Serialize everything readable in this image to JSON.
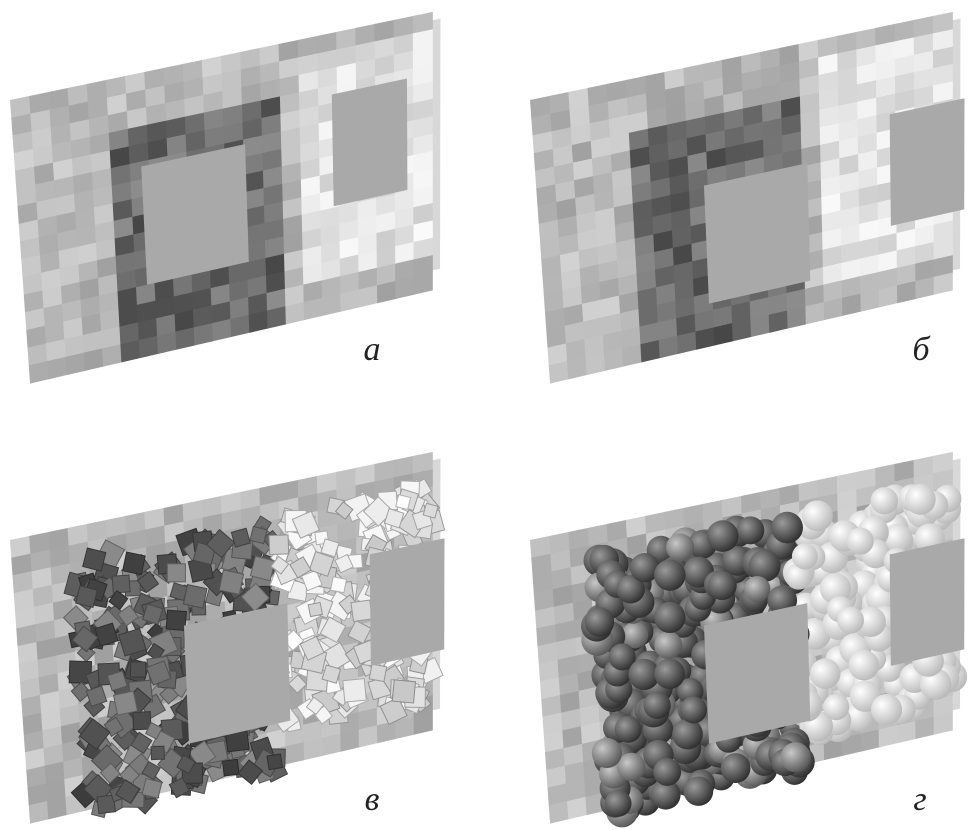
{
  "panels": [
    {
      "label": "а"
    },
    {
      "label": "б"
    },
    {
      "label": "в"
    },
    {
      "label": "г"
    }
  ]
}
